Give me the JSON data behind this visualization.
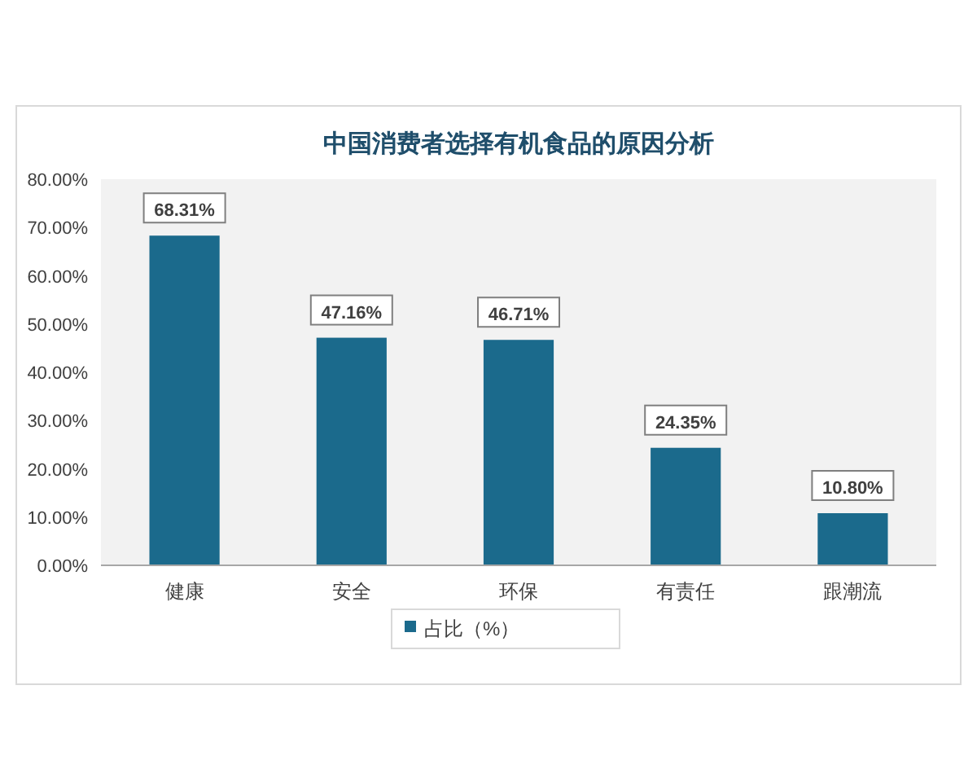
{
  "chart_data": {
    "type": "bar",
    "title": "中国消费者选择有机食品的原因分析",
    "categories": [
      "健康",
      "安全",
      "环保",
      "有责任",
      "跟潮流"
    ],
    "series": [
      {
        "name": "占比（%）",
        "color": "#1b6a8c",
        "values": [
          68.31,
          47.16,
          46.71,
          24.35,
          10.8
        ],
        "value_labels": [
          "68.31%",
          "47.16%",
          "46.71%",
          "24.35%",
          "10.80%"
        ]
      }
    ],
    "ylim": [
      0,
      80
    ],
    "yticks": [
      {
        "value": 0,
        "label": "0.00%"
      },
      {
        "value": 10,
        "label": "10.00%"
      },
      {
        "value": 20,
        "label": "20.00%"
      },
      {
        "value": 30,
        "label": "30.00%"
      },
      {
        "value": 40,
        "label": "40.00%"
      },
      {
        "value": 50,
        "label": "50.00%"
      },
      {
        "value": 60,
        "label": "60.00%"
      },
      {
        "value": 70,
        "label": "70.00%"
      },
      {
        "value": 80,
        "label": "80.00%"
      }
    ],
    "legend": "bottom"
  }
}
